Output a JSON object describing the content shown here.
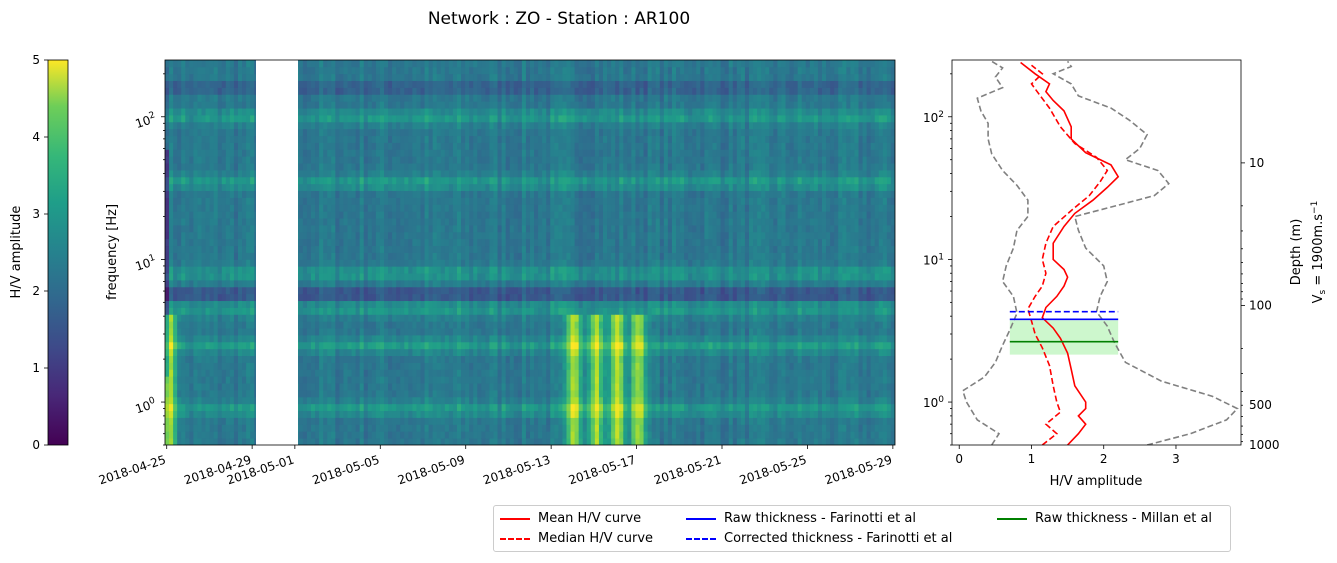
{
  "title": "Network : ZO - Station : AR100",
  "colorbar": {
    "label": "H/V amplitude",
    "ticks": [
      "0",
      "1",
      "2",
      "3",
      "4",
      "5"
    ],
    "range": [
      0,
      5
    ],
    "colormap": "viridis"
  },
  "legend": {
    "items": [
      {
        "label": "Mean H/V curve",
        "color": "#ff0000",
        "dash": "solid"
      },
      {
        "label": "Median H/V curve",
        "color": "#ff0000",
        "dash": "dashed"
      },
      {
        "label": "Raw thickness - Farinotti et al",
        "color": "#0000ff",
        "dash": "solid"
      },
      {
        "label": "Corrected thickness - Farinotti et al",
        "color": "#0000ff",
        "dash": "dashed"
      },
      {
        "label": "Raw thickness - Millan et al",
        "color": "#008000",
        "dash": "solid"
      }
    ]
  },
  "chart_data": [
    {
      "type": "heatmap",
      "title": "",
      "xlabel": "",
      "ylabel": "frequency [Hz]",
      "yscale": "log",
      "ylim": [
        0.5,
        250
      ],
      "xlim": [
        "2018-04-24",
        "2018-05-29"
      ],
      "x_tick_labels": [
        "2018-04-25",
        "2018-04-29",
        "2018-05-01",
        "2018-05-05",
        "2018-05-09",
        "2018-05-13",
        "2018-05-17",
        "2018-05-21",
        "2018-05-25",
        "2018-05-29"
      ],
      "y_tick_labels": [
        "10^0",
        "10^1",
        "10^2"
      ],
      "data_gap": [
        "2018-04-29",
        "2018-05-01"
      ],
      "value_range": [
        0,
        5
      ],
      "colormap": "viridis",
      "bright_bands_hz": [
        0.9,
        2.5,
        4.5,
        8,
        35,
        100
      ],
      "high_amplitude_dates": [
        "2018-04-25",
        "2018-05-14",
        "2018-05-15",
        "2018-05-16",
        "2018-05-17"
      ]
    },
    {
      "type": "line",
      "xlabel": "H/V amplitude",
      "ylabel": "",
      "yscale": "log",
      "ylim": [
        0.5,
        250
      ],
      "xlim": [
        -0.1,
        3.9
      ],
      "x_tick_labels": [
        "0",
        "1",
        "2",
        "3"
      ],
      "y_tick_labels": [
        "10^0",
        "10^1",
        "10^2"
      ],
      "right_axis": {
        "label": "Depth (m)",
        "label2": "Vs = 1900m.s-1",
        "tick_labels": [
          "10",
          "100",
          "500",
          "1000"
        ]
      },
      "series": [
        {
          "name": "Mean H/V curve",
          "color": "#ff0000",
          "dash": "solid",
          "points": [
            [
              1.5,
              0.5
            ],
            [
              1.65,
              0.6
            ],
            [
              1.75,
              0.7
            ],
            [
              1.65,
              0.8
            ],
            [
              1.75,
              0.9
            ],
            [
              1.75,
              1.0
            ],
            [
              1.6,
              1.3
            ],
            [
              1.55,
              1.7
            ],
            [
              1.5,
              2.2
            ],
            [
              1.4,
              2.8
            ],
            [
              1.3,
              3.3
            ],
            [
              1.15,
              3.9
            ],
            [
              1.2,
              4.6
            ],
            [
              1.35,
              5.5
            ],
            [
              1.45,
              6.5
            ],
            [
              1.5,
              7.5
            ],
            [
              1.45,
              8.5
            ],
            [
              1.3,
              10
            ],
            [
              1.3,
              13
            ],
            [
              1.45,
              17
            ],
            [
              1.6,
              21
            ],
            [
              1.85,
              26
            ],
            [
              2.05,
              32
            ],
            [
              2.2,
              38
            ],
            [
              2.1,
              46
            ],
            [
              1.75,
              56
            ],
            [
              1.55,
              70
            ],
            [
              1.55,
              85
            ],
            [
              1.45,
              110
            ],
            [
              1.3,
              130
            ],
            [
              1.2,
              150
            ],
            [
              1.25,
              170
            ],
            [
              1.05,
              200
            ],
            [
              0.85,
              240
            ]
          ]
        },
        {
          "name": "Median H/V curve",
          "color": "#ff0000",
          "dash": "dashed",
          "points": [
            [
              1.15,
              0.5
            ],
            [
              1.35,
              0.6
            ],
            [
              1.2,
              0.7
            ],
            [
              1.4,
              0.85
            ],
            [
              1.35,
              1.0
            ],
            [
              1.3,
              1.3
            ],
            [
              1.25,
              1.8
            ],
            [
              1.15,
              2.4
            ],
            [
              1.05,
              3.0
            ],
            [
              1.0,
              3.7
            ],
            [
              0.95,
              4.5
            ],
            [
              1.05,
              5.5
            ],
            [
              1.15,
              6.5
            ],
            [
              1.2,
              8
            ],
            [
              1.15,
              10
            ],
            [
              1.2,
              13
            ],
            [
              1.3,
              17
            ],
            [
              1.55,
              22
            ],
            [
              1.8,
              28
            ],
            [
              1.95,
              35
            ],
            [
              2.05,
              42
            ],
            [
              1.9,
              52
            ],
            [
              1.6,
              65
            ],
            [
              1.4,
              85
            ],
            [
              1.25,
              115
            ],
            [
              1.1,
              145
            ],
            [
              1.0,
              170
            ],
            [
              1.15,
              200
            ],
            [
              1.0,
              230
            ]
          ]
        },
        {
          "name": "",
          "color": "#808080",
          "dash": "dashed",
          "points": [
            [
              0.45,
              0.5
            ],
            [
              0.55,
              0.6
            ],
            [
              0.25,
              0.75
            ],
            [
              0.1,
              1.0
            ],
            [
              0.05,
              1.2
            ],
            [
              0.35,
              1.5
            ],
            [
              0.5,
              1.9
            ],
            [
              0.6,
              2.5
            ],
            [
              0.7,
              3.2
            ],
            [
              0.8,
              4.2
            ],
            [
              0.75,
              5.5
            ],
            [
              0.6,
              7
            ],
            [
              0.65,
              9
            ],
            [
              0.75,
              12
            ],
            [
              0.8,
              16
            ],
            [
              0.95,
              20
            ],
            [
              0.95,
              26
            ],
            [
              0.8,
              33
            ],
            [
              0.6,
              42
            ],
            [
              0.45,
              55
            ],
            [
              0.4,
              70
            ],
            [
              0.4,
              90
            ],
            [
              0.3,
              110
            ],
            [
              0.25,
              135
            ],
            [
              0.6,
              160
            ],
            [
              0.5,
              190
            ],
            [
              0.6,
              220
            ],
            [
              0.45,
              245
            ]
          ]
        },
        {
          "name": "",
          "color": "#808080",
          "dash": "dashed",
          "points": [
            [
              2.6,
              0.5
            ],
            [
              3.2,
              0.6
            ],
            [
              3.7,
              0.75
            ],
            [
              3.85,
              0.9
            ],
            [
              3.5,
              1.1
            ],
            [
              2.8,
              1.4
            ],
            [
              2.3,
              1.9
            ],
            [
              2.15,
              2.6
            ],
            [
              2.05,
              3.4
            ],
            [
              1.9,
              4.3
            ],
            [
              1.95,
              5.5
            ],
            [
              2.05,
              7
            ],
            [
              2.0,
              9
            ],
            [
              1.75,
              12
            ],
            [
              1.65,
              16
            ],
            [
              1.6,
              20
            ],
            [
              2.2,
              24
            ],
            [
              2.7,
              28
            ],
            [
              2.9,
              34
            ],
            [
              2.75,
              42
            ],
            [
              2.3,
              50
            ],
            [
              2.5,
              60
            ],
            [
              2.6,
              75
            ],
            [
              2.35,
              95
            ],
            [
              2.1,
              115
            ],
            [
              1.65,
              140
            ],
            [
              1.55,
              170
            ],
            [
              1.3,
              200
            ],
            [
              1.55,
              225
            ],
            [
              1.5,
              245
            ]
          ]
        }
      ],
      "thickness_lines": [
        {
          "name": "Raw thickness - Farinotti et al",
          "color": "#0000ff",
          "dash": "solid",
          "freq_hz": 3.8,
          "x_range": [
            0.7,
            2.2
          ]
        },
        {
          "name": "Corrected thickness - Farinotti et al",
          "color": "#0000ff",
          "dash": "dashed",
          "freq_hz": 4.3,
          "x_range": [
            0.7,
            2.2
          ]
        },
        {
          "name": "Raw thickness - Millan et al",
          "color": "#008000",
          "dash": "solid",
          "freq_hz": 2.65,
          "x_range": [
            0.7,
            2.2
          ],
          "band_hz": [
            2.15,
            3.75
          ],
          "band_color": "#90ee90"
        }
      ]
    }
  ]
}
